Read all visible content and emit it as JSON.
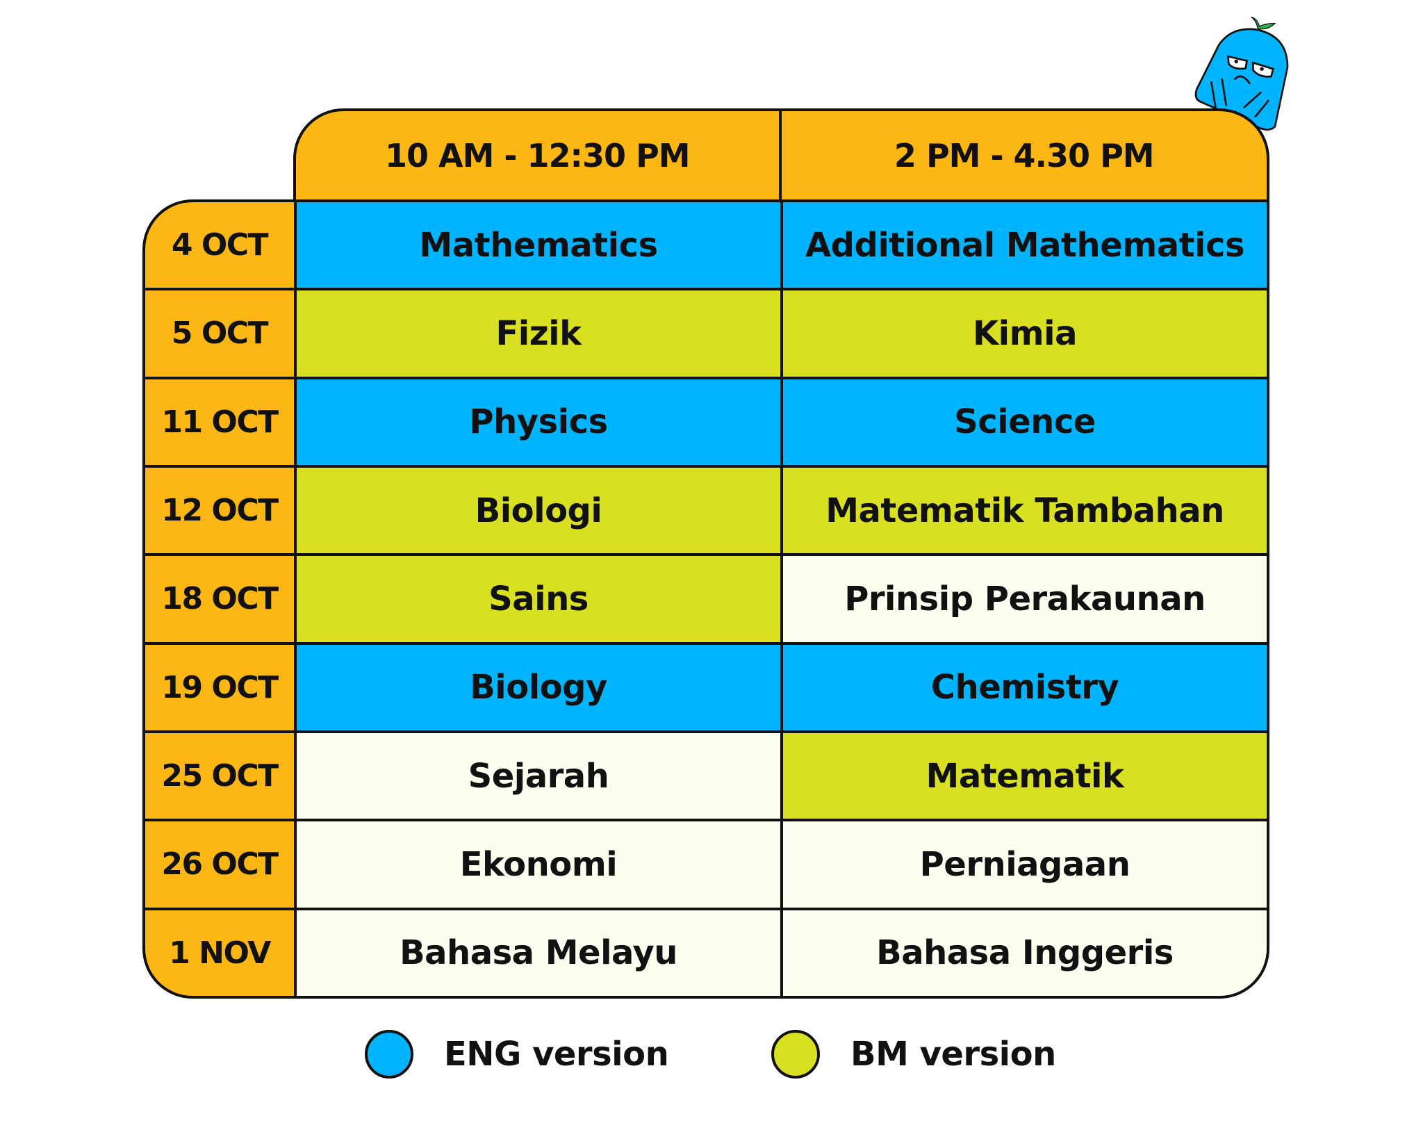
{
  "colors": {
    "header": "#FDB714",
    "eng": "#00B4FF",
    "bm": "#D9E021",
    "none": "#FDFDF0"
  },
  "header": {
    "slot_1": "10 AM - 12:30 PM",
    "slot_2": "2 PM - 4.30 PM"
  },
  "rows": [
    {
      "date": "4 OCT",
      "slot_1": {
        "subject": "Mathematics",
        "version": "eng"
      },
      "slot_2": {
        "subject": "Additional Mathematics",
        "version": "eng"
      }
    },
    {
      "date": "5 OCT",
      "slot_1": {
        "subject": "Fizik",
        "version": "bm"
      },
      "slot_2": {
        "subject": "Kimia",
        "version": "bm"
      }
    },
    {
      "date": "11 OCT",
      "slot_1": {
        "subject": "Physics",
        "version": "eng"
      },
      "slot_2": {
        "subject": "Science",
        "version": "eng"
      }
    },
    {
      "date": "12 OCT",
      "slot_1": {
        "subject": "Biologi",
        "version": "bm"
      },
      "slot_2": {
        "subject": "Matematik Tambahan",
        "version": "bm"
      }
    },
    {
      "date": "18 OCT",
      "slot_1": {
        "subject": "Sains",
        "version": "bm"
      },
      "slot_2": {
        "subject": "Prinsip Perakaunan",
        "version": "none"
      }
    },
    {
      "date": "19 OCT",
      "slot_1": {
        "subject": "Biology",
        "version": "eng"
      },
      "slot_2": {
        "subject": "Chemistry",
        "version": "eng"
      }
    },
    {
      "date": "25 OCT",
      "slot_1": {
        "subject": "Sejarah",
        "version": "none"
      },
      "slot_2": {
        "subject": "Matematik",
        "version": "bm"
      }
    },
    {
      "date": "26 OCT",
      "slot_1": {
        "subject": "Ekonomi",
        "version": "none"
      },
      "slot_2": {
        "subject": "Perniagaan",
        "version": "none"
      }
    },
    {
      "date": "1 NOV",
      "slot_1": {
        "subject": "Bahasa Melayu",
        "version": "none"
      },
      "slot_2": {
        "subject": "Bahasa Inggeris",
        "version": "none"
      }
    }
  ],
  "legend": {
    "eng": "ENG version",
    "bm": "BM version"
  },
  "mascot": {
    "icon": "blue-blob-mascot-icon"
  }
}
